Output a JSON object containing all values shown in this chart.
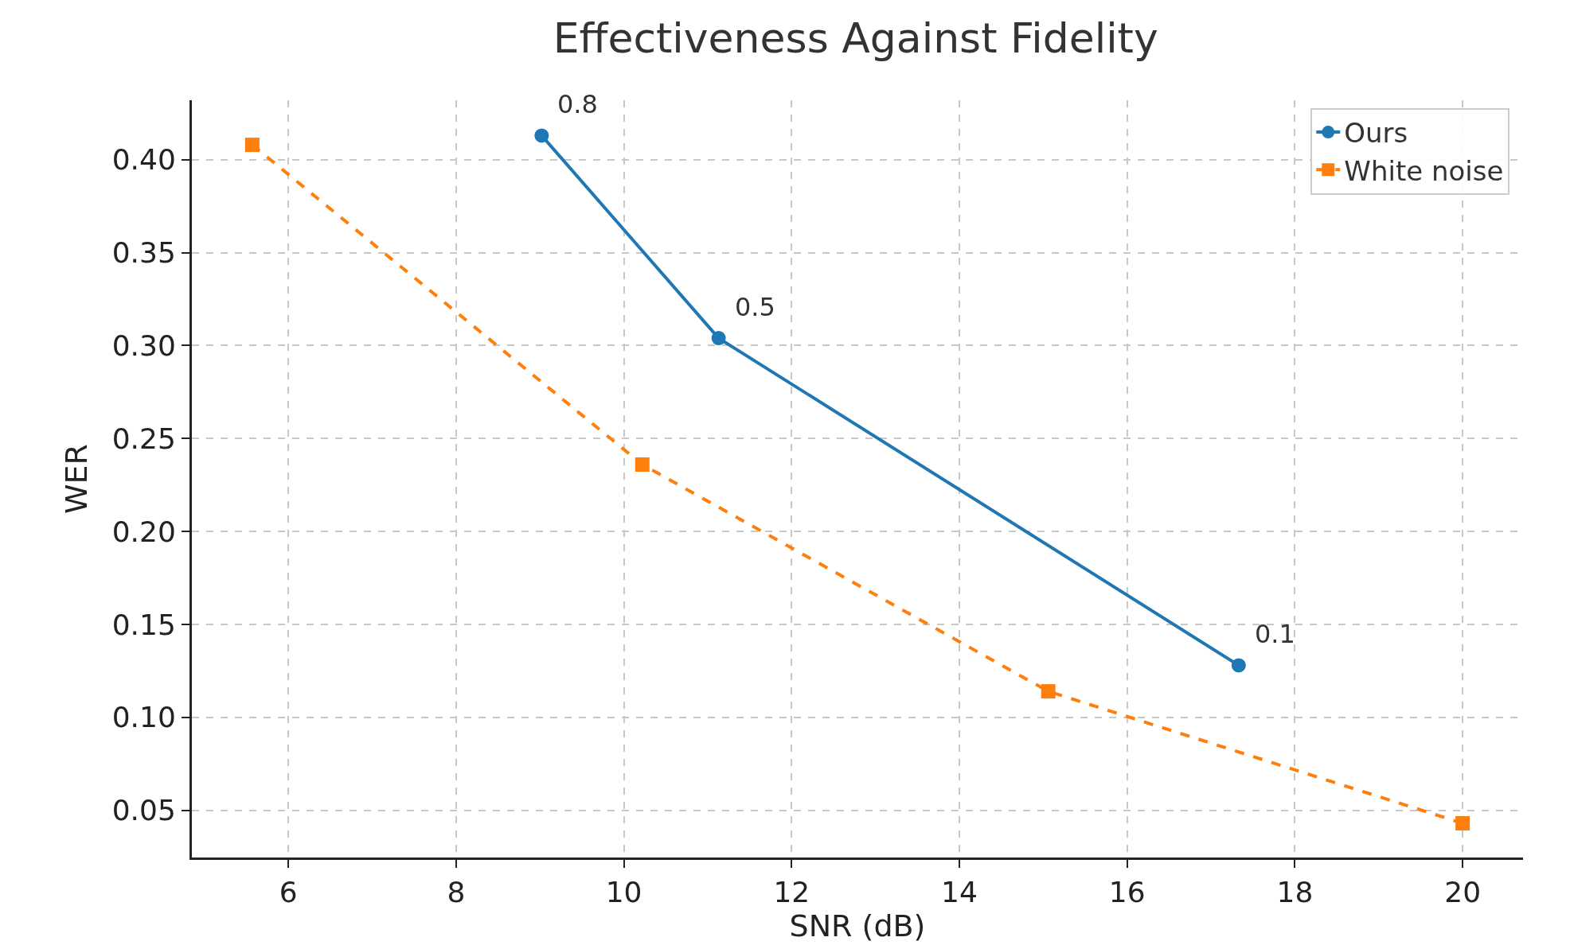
{
  "chart_data": {
    "type": "line",
    "title": "Effectiveness Against Fidelity",
    "xlabel": "SNR (dB)",
    "ylabel": "WER",
    "xlim": [
      4.85,
      20.72
    ],
    "xticks": [
      6,
      8,
      10,
      12,
      14,
      16,
      18,
      20
    ],
    "ylim": [
      0.0246,
      0.432
    ],
    "yticks": [
      {
        "value": 0.05,
        "label": "0.05"
      },
      {
        "value": 0.1,
        "label": "0.10"
      },
      {
        "value": 0.15,
        "label": "0.15"
      },
      {
        "value": 0.2,
        "label": "0.20"
      },
      {
        "value": 0.25,
        "label": "0.25"
      },
      {
        "value": 0.3,
        "label": "0.30"
      },
      {
        "value": 0.35,
        "label": "0.35"
      },
      {
        "value": 0.4,
        "label": "0.40"
      }
    ],
    "grid": true,
    "legend": "top right",
    "series": [
      {
        "name": "Ours",
        "color": "#1f77b4",
        "marker": "circle",
        "line_style": "solid",
        "x": [
          9.02,
          11.13,
          17.33
        ],
        "values": [
          0.413,
          0.304,
          0.128
        ]
      },
      {
        "name": "White noise",
        "color": "#ff7f0e",
        "marker": "square",
        "line_style": "dashed",
        "x": [
          5.57,
          10.22,
          15.06,
          20.0
        ],
        "values": [
          0.408,
          0.236,
          0.114,
          0.043
        ]
      }
    ],
    "annotations": [
      {
        "text": "0.8",
        "x": 9.02,
        "y": 0.413
      },
      {
        "text": "0.5",
        "x": 11.13,
        "y": 0.304
      },
      {
        "text": "0.1",
        "x": 17.33,
        "y": 0.128
      }
    ]
  }
}
